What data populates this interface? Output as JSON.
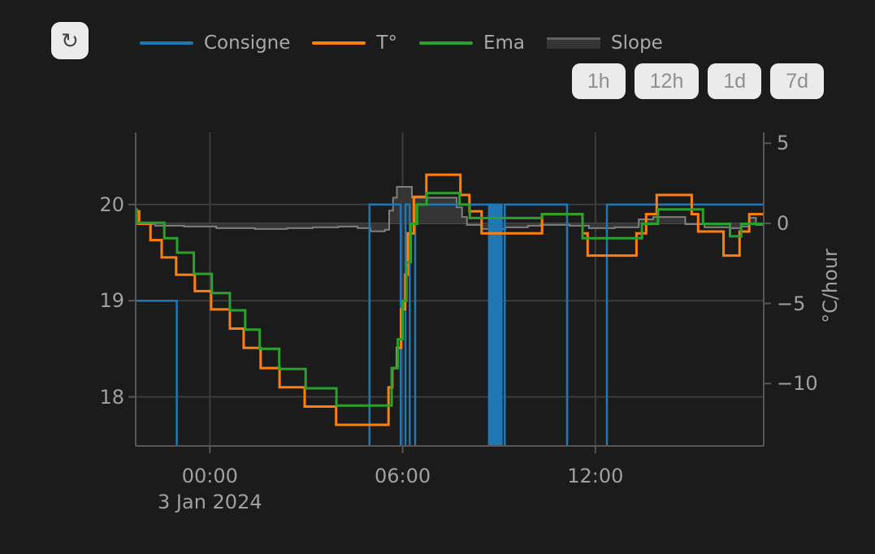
{
  "toolbar": {
    "refresh_icon": "↻"
  },
  "legend": [
    {
      "label": "Consigne",
      "color": "#1f77b4",
      "type": "line"
    },
    {
      "label": "T°",
      "color": "#ff7f0e",
      "type": "line"
    },
    {
      "label": "Ema",
      "color": "#2ca02c",
      "type": "line"
    },
    {
      "label": "Slope",
      "color": "#7f7f7f",
      "fill": "#353535",
      "type": "area"
    }
  ],
  "range_buttons": [
    "1h",
    "12h",
    "1d",
    "7d"
  ],
  "chart_data": {
    "type": "line",
    "x_axis": {
      "unit": "hours from 3 Jan 2024 00:00",
      "range": [
        -2.31,
        17.24
      ],
      "ticks": [
        {
          "t": 0,
          "label": "00:00"
        },
        {
          "t": 6,
          "label": "06:00"
        },
        {
          "t": 12,
          "label": "12:00"
        }
      ],
      "date_label": "3 Jan 2024"
    },
    "y_left": {
      "unit": "°C",
      "range": [
        17.49,
        20.75
      ],
      "ticks": [
        {
          "v": 20,
          "label": "20"
        },
        {
          "v": 19,
          "label": "19"
        },
        {
          "v": 18,
          "label": "18"
        }
      ]
    },
    "y_right": {
      "title": "°C/hour",
      "range": [
        -13.9,
        5.68
      ],
      "ticks": [
        {
          "v": 5,
          "label": "5"
        },
        {
          "v": 0,
          "label": "0"
        },
        {
          "v": -5,
          "label": "−5"
        },
        {
          "v": -10,
          "label": "−10"
        }
      ]
    },
    "series": [
      {
        "name": "Consigne",
        "axis": "left",
        "color": "#1f77b4",
        "width": 2.5,
        "mode": "step",
        "points": [
          [
            -2.31,
            19
          ],
          [
            -1.03,
            17
          ],
          [
            4.97,
            20
          ],
          [
            5.94,
            17
          ],
          [
            6.09,
            20
          ],
          [
            6.22,
            17
          ],
          [
            6.39,
            20
          ],
          [
            8.69,
            17
          ],
          [
            8.71,
            20
          ],
          [
            8.77,
            17
          ],
          [
            8.79,
            20
          ],
          [
            8.85,
            17
          ],
          [
            8.87,
            20
          ],
          [
            8.92,
            17
          ],
          [
            8.94,
            20
          ],
          [
            9.0,
            17
          ],
          [
            9.02,
            20
          ],
          [
            9.08,
            17
          ],
          [
            9.18,
            20
          ],
          [
            11.12,
            17
          ],
          [
            12.36,
            20
          ]
        ]
      },
      {
        "name": "T°",
        "axis": "left",
        "color": "#ff7f0e",
        "width": 3,
        "mode": "step",
        "points": [
          [
            -2.31,
            19.93
          ],
          [
            -2.2,
            19.8
          ],
          [
            -1.85,
            19.63
          ],
          [
            -1.5,
            19.45
          ],
          [
            -1.05,
            19.27
          ],
          [
            -0.47,
            19.1
          ],
          [
            0.04,
            18.91
          ],
          [
            0.62,
            18.71
          ],
          [
            1.05,
            18.51
          ],
          [
            1.58,
            18.3
          ],
          [
            2.17,
            18.1
          ],
          [
            2.95,
            17.9
          ],
          [
            3.93,
            17.71
          ],
          [
            5.56,
            18.1
          ],
          [
            5.68,
            18.3
          ],
          [
            5.82,
            18.51
          ],
          [
            5.95,
            18.91
          ],
          [
            6.08,
            19.27
          ],
          [
            6.16,
            19.7
          ],
          [
            6.35,
            20.08
          ],
          [
            6.74,
            20.31
          ],
          [
            7.8,
            20.1
          ],
          [
            8.08,
            19.93
          ],
          [
            8.46,
            19.7
          ],
          [
            10.34,
            19.9
          ],
          [
            11.6,
            19.7
          ],
          [
            11.76,
            19.47
          ],
          [
            13.28,
            19.7
          ],
          [
            13.58,
            19.9
          ],
          [
            13.91,
            20.1
          ],
          [
            15.0,
            19.9
          ],
          [
            15.2,
            19.72
          ],
          [
            15.99,
            19.47
          ],
          [
            16.49,
            19.72
          ],
          [
            16.79,
            19.9
          ]
        ]
      },
      {
        "name": "Ema",
        "axis": "left",
        "color": "#2ca02c",
        "width": 3,
        "mode": "step",
        "points": [
          [
            -2.31,
            19.95
          ],
          [
            -2.28,
            19.81
          ],
          [
            -1.42,
            19.65
          ],
          [
            -1.02,
            19.5
          ],
          [
            -0.5,
            19.28
          ],
          [
            0.06,
            19.08
          ],
          [
            0.62,
            18.9
          ],
          [
            1.1,
            18.7
          ],
          [
            1.55,
            18.5
          ],
          [
            2.16,
            18.29
          ],
          [
            2.98,
            18.09
          ],
          [
            3.94,
            17.91
          ],
          [
            5.66,
            18.3
          ],
          [
            5.85,
            18.6
          ],
          [
            6.0,
            19.0
          ],
          [
            6.12,
            19.4
          ],
          [
            6.25,
            19.8
          ],
          [
            6.45,
            20.0
          ],
          [
            6.75,
            20.12
          ],
          [
            7.77,
            20.0
          ],
          [
            8.09,
            19.86
          ],
          [
            10.34,
            19.9
          ],
          [
            11.6,
            19.65
          ],
          [
            13.45,
            19.8
          ],
          [
            13.95,
            19.95
          ],
          [
            15.35,
            19.8
          ],
          [
            16.19,
            19.67
          ],
          [
            16.54,
            19.8
          ]
        ]
      },
      {
        "name": "Slope",
        "axis": "right",
        "color": "#7f7f7f",
        "fill": "#353535",
        "fill_to_zero": true,
        "width": 2,
        "mode": "step",
        "points": [
          [
            -2.31,
            -0.05
          ],
          [
            -1.7,
            -0.15
          ],
          [
            -0.8,
            -0.2
          ],
          [
            0.2,
            -0.3
          ],
          [
            1.4,
            -0.35
          ],
          [
            2.4,
            -0.3
          ],
          [
            3.2,
            -0.25
          ],
          [
            4.0,
            -0.2
          ],
          [
            4.6,
            -0.3
          ],
          [
            5.0,
            -0.5
          ],
          [
            5.45,
            -0.4
          ],
          [
            5.58,
            0.8
          ],
          [
            5.7,
            1.6
          ],
          [
            5.82,
            2.28
          ],
          [
            6.29,
            1.6
          ],
          [
            7.68,
            1.0
          ],
          [
            7.85,
            0.4
          ],
          [
            8.0,
            -0.1
          ],
          [
            8.45,
            -0.35
          ],
          [
            9.2,
            -0.25
          ],
          [
            9.9,
            -0.15
          ],
          [
            10.3,
            -0.1
          ],
          [
            11.2,
            -0.15
          ],
          [
            11.8,
            -0.3
          ],
          [
            12.6,
            -0.25
          ],
          [
            13.35,
            0.25
          ],
          [
            13.8,
            0.4
          ],
          [
            14.8,
            -0.05
          ],
          [
            15.4,
            -0.25
          ],
          [
            16.2,
            -0.3
          ],
          [
            16.55,
            -0.2
          ],
          [
            16.79,
            0.35
          ],
          [
            17.0,
            -0.1
          ]
        ]
      }
    ]
  }
}
